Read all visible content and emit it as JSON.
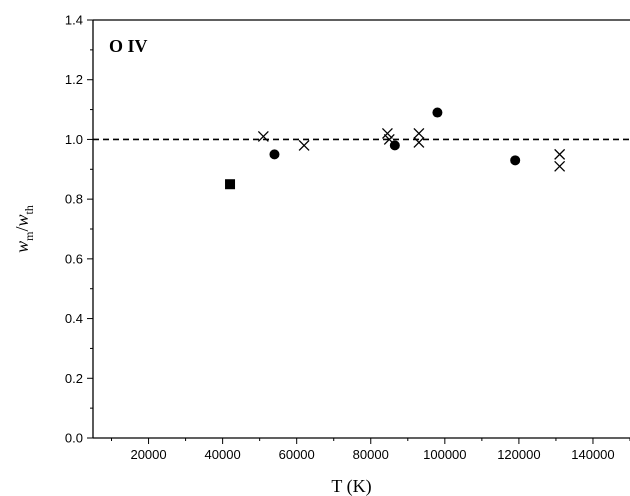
{
  "chart_data": {
    "type": "scatter",
    "title": "",
    "panel_label": "O IV",
    "xlabel": "T (K)",
    "ylabel": {
      "base1": "w",
      "sub1": "m",
      "sep": "/",
      "base2": "w",
      "sub2": "th"
    },
    "xlim": [
      5000,
      150000
    ],
    "ylim": [
      0.0,
      1.4
    ],
    "xticks": [
      20000,
      40000,
      60000,
      80000,
      100000,
      120000,
      140000
    ],
    "yticks": [
      0.0,
      0.2,
      0.4,
      0.6,
      0.8,
      1.0,
      1.2,
      1.4
    ],
    "ytick_labels": [
      "0.0",
      "0.2",
      "0.4",
      "0.6",
      "0.8",
      "1.0",
      "1.2",
      "1.4"
    ],
    "reference_line": {
      "y": 1.0,
      "style": "dashed"
    },
    "grid": false,
    "series": [
      {
        "marker": "square",
        "points": [
          {
            "x": 42000,
            "y": 0.85
          }
        ]
      },
      {
        "marker": "circle",
        "points": [
          {
            "x": 54000,
            "y": 0.95
          },
          {
            "x": 86500,
            "y": 0.98
          },
          {
            "x": 98000,
            "y": 1.09
          },
          {
            "x": 119000,
            "y": 0.93
          }
        ]
      },
      {
        "marker": "cross",
        "points": [
          {
            "x": 51000,
            "y": 1.01
          },
          {
            "x": 62000,
            "y": 0.98
          },
          {
            "x": 84500,
            "y": 1.02
          },
          {
            "x": 85000,
            "y": 1.0
          },
          {
            "x": 93000,
            "y": 1.02
          },
          {
            "x": 93000,
            "y": 0.99
          },
          {
            "x": 131000,
            "y": 0.95
          },
          {
            "x": 131000,
            "y": 0.91
          }
        ]
      }
    ]
  }
}
